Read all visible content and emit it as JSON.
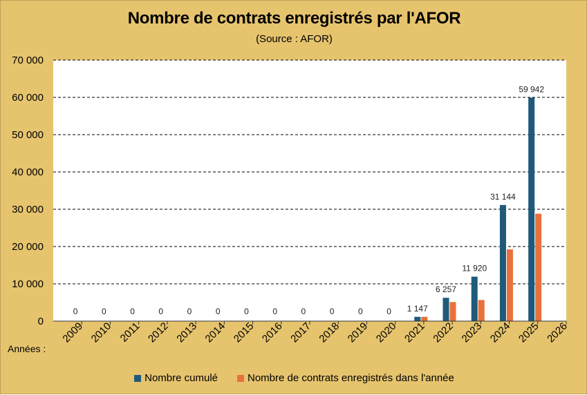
{
  "colors": {
    "background": "#E6C46E",
    "plot_background": "#FFFFFF",
    "series_cumule": "#1F5A7A",
    "series_annee": "#E8703A",
    "grid": "#000000"
  },
  "x_axis_prefix": "Années :",
  "chart_data": {
    "type": "bar",
    "title": "Nombre de contrats enregistrés par l'AFOR",
    "subtitle": "(Source : AFOR)",
    "xlabel": "Années",
    "ylabel": "",
    "ylim": [
      0,
      70000
    ],
    "yticks": [
      0,
      10000,
      20000,
      30000,
      40000,
      50000,
      60000,
      70000
    ],
    "ytick_labels": [
      "0",
      "10 000",
      "20 000",
      "30 000",
      "40 000",
      "50 000",
      "60 000",
      "70 000"
    ],
    "categories": [
      "2009",
      "2010",
      "2011",
      "2012",
      "2013",
      "2014",
      "2015",
      "2016",
      "2017",
      "2018",
      "2019",
      "2020",
      "2021",
      "2022",
      "2023",
      "2024",
      "2025",
      "2026"
    ],
    "grid": "horizontal dashed",
    "legend_position": "bottom",
    "series": [
      {
        "name": "Nombre cumulé",
        "values": [
          0,
          0,
          0,
          0,
          0,
          0,
          0,
          0,
          0,
          0,
          0,
          0,
          1147,
          6257,
          11920,
          31144,
          59942,
          null
        ],
        "data_labels": [
          "0",
          "0",
          "0",
          "0",
          "0",
          "0",
          "0",
          "0",
          "0",
          "0",
          "0",
          "0",
          "1 147",
          "6 257",
          "11 920",
          "31 144",
          "59 942",
          ""
        ]
      },
      {
        "name": "Nombre de contrats enregistrés dans l'année",
        "values": [
          0,
          0,
          0,
          0,
          0,
          0,
          0,
          0,
          0,
          0,
          0,
          0,
          1147,
          5110,
          5663,
          19224,
          28798,
          null
        ]
      }
    ]
  }
}
